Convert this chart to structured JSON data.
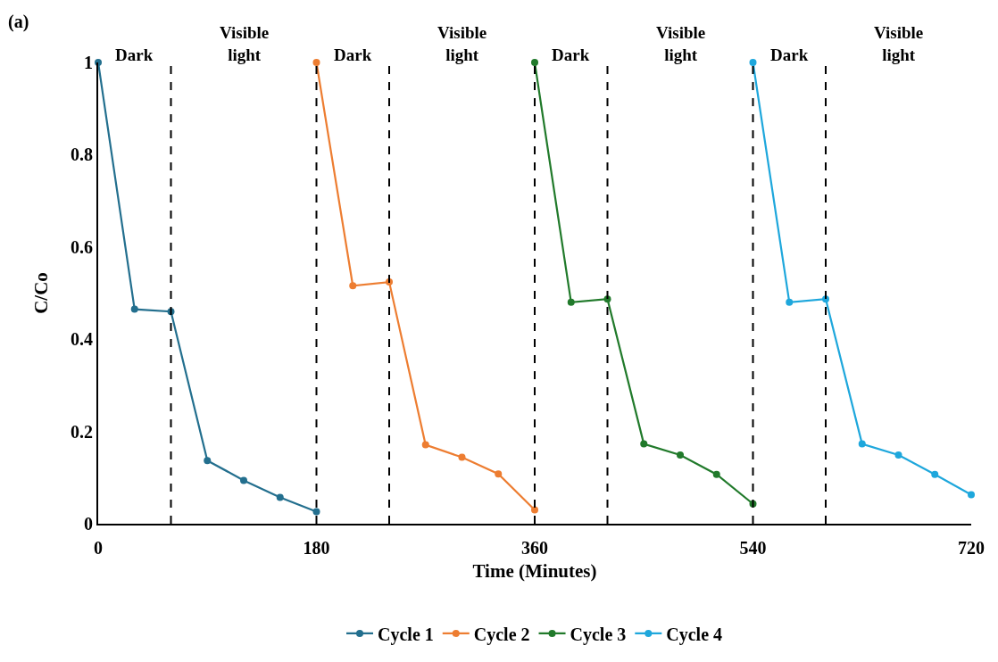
{
  "chart_data": {
    "type": "line",
    "xlabel": "Time (Minutes)",
    "ylabel": "C/Co",
    "xlim": [
      0,
      720
    ],
    "xticks": [
      0,
      180,
      360,
      540,
      720
    ],
    "ylim": [
      0,
      1
    ],
    "yticks": [
      0,
      0.2,
      0.4,
      0.6,
      0.8,
      1
    ],
    "legend": "bottom",
    "marker": "circle",
    "line_style": "solid",
    "series": [
      {
        "name": "Cycle 1",
        "color": "#236f8e",
        "x": [
          0,
          30,
          60,
          90,
          120,
          150,
          180
        ],
        "values": [
          1,
          0.465,
          0.46,
          0.137,
          0.094,
          0.057,
          0.026
        ]
      },
      {
        "name": "Cycle 2",
        "color": "#ed7d31",
        "x": [
          180,
          210,
          240,
          270,
          300,
          330,
          360
        ],
        "values": [
          1,
          0.516,
          0.524,
          0.171,
          0.144,
          0.108,
          0.03
        ]
      },
      {
        "name": "Cycle 3",
        "color": "#217a2b",
        "x": [
          360,
          390,
          420,
          450,
          480,
          510,
          540
        ],
        "values": [
          1,
          0.48,
          0.487,
          0.173,
          0.149,
          0.107,
          0.043
        ]
      },
      {
        "name": "Cycle 4",
        "color": "#1ea7dc",
        "x": [
          540,
          570,
          600,
          630,
          660,
          690,
          720
        ],
        "values": [
          1,
          0.48,
          0.487,
          0.173,
          0.149,
          0.107,
          0.063
        ]
      }
    ],
    "ref_lines": [
      {
        "axis": "x",
        "value": 60,
        "color": "#000000",
        "line_style": "dashed"
      },
      {
        "axis": "x",
        "value": 180,
        "color": "#000000",
        "line_style": "dashed"
      },
      {
        "axis": "x",
        "value": 240,
        "color": "#000000",
        "line_style": "dashed"
      },
      {
        "axis": "x",
        "value": 360,
        "color": "#000000",
        "line_style": "dashed"
      },
      {
        "axis": "x",
        "value": 420,
        "color": "#000000",
        "line_style": "dashed"
      },
      {
        "axis": "x",
        "value": 540,
        "color": "#000000",
        "line_style": "dashed"
      },
      {
        "axis": "x",
        "value": 600,
        "color": "#000000",
        "line_style": "dashed"
      }
    ],
    "annotations": [
      "(a)",
      "Dark",
      "Visible light",
      "Dark",
      "Visible light",
      "Dark",
      "Visible light",
      "Dark",
      "Visible light"
    ]
  }
}
